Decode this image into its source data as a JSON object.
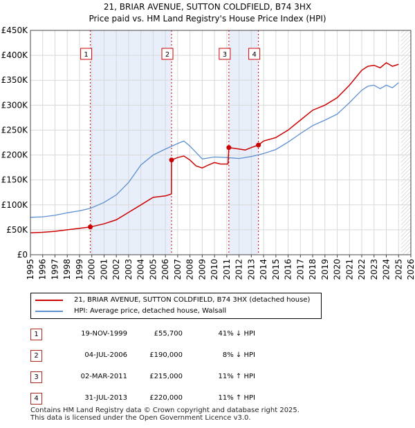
{
  "title_line1": "21, BRIAR AVENUE, SUTTON COLDFIELD, B74 3HX",
  "title_line2": "Price paid vs. HM Land Registry's House Price Index (HPI)",
  "colors": {
    "price": "#cc0000",
    "hpi": "#5b8fd0",
    "shade": "#e8eefa",
    "marker": "#cc0000",
    "grid": "#d8d8d8"
  },
  "chart_data": {
    "type": "line",
    "title": "21, BRIAR AVENUE, SUTTON COLDFIELD, B74 3HX — Price paid vs. HM Land Registry's House Price Index (HPI)",
    "xlabel": "",
    "ylabel": "",
    "xlim": [
      1995,
      2026
    ],
    "ylim": [
      0,
      450000
    ],
    "x_ticks": [
      "1995",
      "1996",
      "1997",
      "1998",
      "1999",
      "2000",
      "2001",
      "2002",
      "2003",
      "2004",
      "2005",
      "2006",
      "2007",
      "2008",
      "2009",
      "2010",
      "2011",
      "2012",
      "2013",
      "2014",
      "2015",
      "2016",
      "2017",
      "2018",
      "2019",
      "2020",
      "2021",
      "2022",
      "2023",
      "2024",
      "2025",
      "2026"
    ],
    "y_ticks": [
      {
        "value": 0,
        "label": "£0"
      },
      {
        "value": 50000,
        "label": "£50K"
      },
      {
        "value": 100000,
        "label": "£100K"
      },
      {
        "value": 150000,
        "label": "£150K"
      },
      {
        "value": 200000,
        "label": "£200K"
      },
      {
        "value": 250000,
        "label": "£250K"
      },
      {
        "value": 300000,
        "label": "£300K"
      },
      {
        "value": 350000,
        "label": "£350K"
      },
      {
        "value": 400000,
        "label": "£400K"
      },
      {
        "value": 450000,
        "label": "£450K"
      }
    ],
    "shaded_ranges": [
      [
        1999.88,
        2006.5
      ],
      [
        2011.17,
        2013.58
      ]
    ],
    "series": [
      {
        "name": "21, BRIAR AVENUE, SUTTON COLDFIELD, B74 3HX (detached house)",
        "points": [
          [
            1995,
            44000
          ],
          [
            1996,
            45000
          ],
          [
            1997,
            47000
          ],
          [
            1998,
            50000
          ],
          [
            1999,
            53000
          ],
          [
            1999.88,
            55700
          ],
          [
            2001,
            62000
          ],
          [
            2002,
            70000
          ],
          [
            2003,
            85000
          ],
          [
            2004,
            100000
          ],
          [
            2005,
            115000
          ],
          [
            2006,
            118000
          ],
          [
            2006.49,
            122000
          ],
          [
            2006.5,
            190000
          ],
          [
            2007,
            195000
          ],
          [
            2007.5,
            198000
          ],
          [
            2008,
            190000
          ],
          [
            2008.5,
            178000
          ],
          [
            2009,
            174000
          ],
          [
            2009.5,
            180000
          ],
          [
            2010,
            185000
          ],
          [
            2010.5,
            182000
          ],
          [
            2011.1,
            182000
          ],
          [
            2011.17,
            215000
          ],
          [
            2012,
            212000
          ],
          [
            2012.5,
            210000
          ],
          [
            2013,
            215000
          ],
          [
            2013.58,
            220000
          ],
          [
            2014,
            228000
          ],
          [
            2015,
            235000
          ],
          [
            2016,
            250000
          ],
          [
            2017,
            270000
          ],
          [
            2018,
            290000
          ],
          [
            2019,
            300000
          ],
          [
            2020,
            315000
          ],
          [
            2021,
            340000
          ],
          [
            2022,
            370000
          ],
          [
            2022.5,
            378000
          ],
          [
            2023,
            380000
          ],
          [
            2023.5,
            375000
          ],
          [
            2024,
            385000
          ],
          [
            2024.5,
            378000
          ],
          [
            2025,
            382000
          ]
        ]
      },
      {
        "name": "HPI: Average price, detached house, Walsall",
        "points": [
          [
            1995,
            75000
          ],
          [
            1996,
            76000
          ],
          [
            1997,
            79000
          ],
          [
            1998,
            84000
          ],
          [
            1999,
            88000
          ],
          [
            1999.88,
            93000
          ],
          [
            2001,
            105000
          ],
          [
            2002,
            120000
          ],
          [
            2003,
            145000
          ],
          [
            2004,
            180000
          ],
          [
            2005,
            200000
          ],
          [
            2006,
            212000
          ],
          [
            2007,
            223000
          ],
          [
            2007.5,
            228000
          ],
          [
            2008,
            218000
          ],
          [
            2009,
            192000
          ],
          [
            2010,
            196000
          ],
          [
            2011,
            195000
          ],
          [
            2012,
            193000
          ],
          [
            2013,
            197000
          ],
          [
            2014,
            203000
          ],
          [
            2015,
            211000
          ],
          [
            2016,
            226000
          ],
          [
            2017,
            243000
          ],
          [
            2018,
            259000
          ],
          [
            2019,
            270000
          ],
          [
            2020,
            282000
          ],
          [
            2021,
            305000
          ],
          [
            2022,
            330000
          ],
          [
            2022.5,
            338000
          ],
          [
            2023,
            340000
          ],
          [
            2023.5,
            333000
          ],
          [
            2024,
            340000
          ],
          [
            2024.5,
            335000
          ],
          [
            2025,
            345000
          ]
        ]
      }
    ],
    "annotations": [
      {
        "label": "1",
        "x": 1999.88,
        "value": 55700
      },
      {
        "label": "2",
        "x": 2006.5,
        "value": 190000
      },
      {
        "label": "3",
        "x": 2011.17,
        "value": 215000
      },
      {
        "label": "4",
        "x": 2013.58,
        "value": 220000
      }
    ],
    "forecast_from": 2025.2
  },
  "legend": {
    "price_label": "21, BRIAR AVENUE, SUTTON COLDFIELD, B74 3HX (detached house)",
    "hpi_label": "HPI: Average price, detached house, Walsall"
  },
  "sales": [
    {
      "num": "1",
      "date": "19-NOV-1999",
      "price": "£55,700",
      "hpi": "41% ↓ HPI"
    },
    {
      "num": "2",
      "date": "04-JUL-2006",
      "price": "£190,000",
      "hpi": "8% ↓ HPI"
    },
    {
      "num": "3",
      "date": "02-MAR-2011",
      "price": "£215,000",
      "hpi": "11% ↑ HPI"
    },
    {
      "num": "4",
      "date": "31-JUL-2013",
      "price": "£220,000",
      "hpi": "11% ↑ HPI"
    }
  ],
  "footer": {
    "line1": "Contains HM Land Registry data © Crown copyright and database right 2025.",
    "line2": "This data is licensed under the Open Government Licence v3.0."
  }
}
